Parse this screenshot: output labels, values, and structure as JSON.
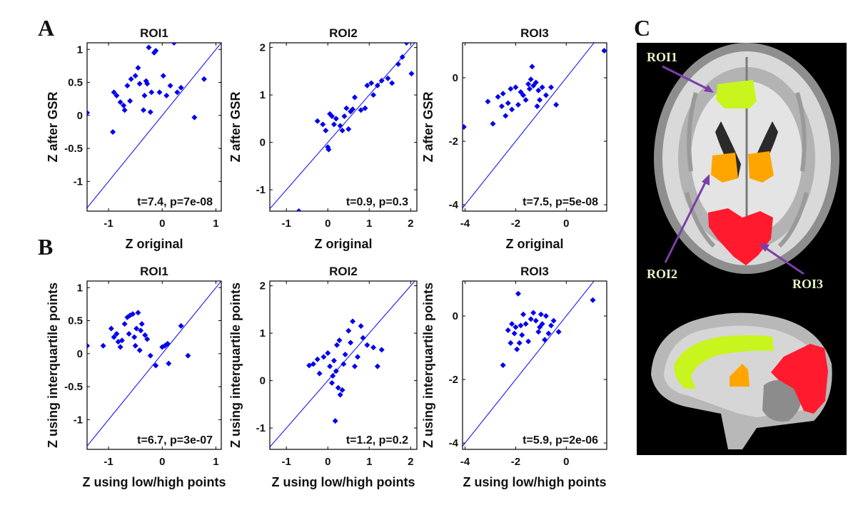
{
  "panel_letters": {
    "a": "A",
    "b": "B",
    "c": "C"
  },
  "brain": {
    "roi1_label": "ROI1",
    "roi2_label": "ROI2",
    "roi3_label": "ROI3",
    "colors": {
      "roi1": "#c8f51e",
      "roi2": "#ffa500",
      "roi3": "#ff1a2e",
      "arrow": "#7a3ea8"
    }
  },
  "chart_data": [
    {
      "id": "A1",
      "type": "scatter",
      "title": "ROI1",
      "xlabel": "Z original",
      "ylabel": "Z after GSR",
      "xlim": [
        -1.4,
        1.1
      ],
      "ylim": [
        -1.45,
        1.1
      ],
      "xticks": [
        -1,
        0,
        1
      ],
      "yticks": [
        -1,
        -0.5,
        0,
        0.5,
        1
      ],
      "annotation": "t=7.4, p=7e-08",
      "points": [
        [
          -1.4,
          0.04
        ],
        [
          -0.92,
          -0.25
        ],
        [
          -0.9,
          0.35
        ],
        [
          -0.85,
          0.3
        ],
        [
          -0.78,
          0.2
        ],
        [
          -0.72,
          0.15
        ],
        [
          -0.7,
          0.08
        ],
        [
          -0.65,
          0.45
        ],
        [
          -0.6,
          0.22
        ],
        [
          -0.58,
          0.55
        ],
        [
          -0.5,
          0.6
        ],
        [
          -0.45,
          0.72
        ],
        [
          -0.42,
          0.48
        ],
        [
          -0.35,
          0.08
        ],
        [
          -0.33,
          0.3
        ],
        [
          -0.3,
          0.52
        ],
        [
          -0.28,
          0.48
        ],
        [
          -0.25,
          1.03
        ],
        [
          -0.22,
          0.05
        ],
        [
          -0.2,
          0.35
        ],
        [
          -0.15,
          0.95
        ],
        [
          -0.12,
          0.98
        ],
        [
          -0.05,
          0.35
        ],
        [
          0.02,
          0.6
        ],
        [
          0.08,
          0.3
        ],
        [
          0.15,
          0.45
        ],
        [
          0.22,
          1.1
        ],
        [
          0.28,
          0.35
        ],
        [
          0.35,
          0.42
        ],
        [
          0.6,
          -0.03
        ],
        [
          0.78,
          0.55
        ]
      ]
    },
    {
      "id": "A2",
      "type": "scatter",
      "title": "ROI2",
      "xlabel": "Z original",
      "ylabel": "Z after GSR",
      "xlim": [
        -1.4,
        2.15
      ],
      "ylim": [
        -1.45,
        2.1
      ],
      "xticks": [
        -1,
        0,
        1,
        2
      ],
      "yticks": [
        -1,
        0,
        1,
        2
      ],
      "annotation": "t=0.9, p=0.3",
      "points": [
        [
          -0.7,
          -1.45
        ],
        [
          -0.25,
          0.45
        ],
        [
          -0.12,
          0.38
        ],
        [
          -0.05,
          0.25
        ],
        [
          0.0,
          -0.1
        ],
        [
          0.02,
          -0.15
        ],
        [
          0.05,
          0.6
        ],
        [
          0.1,
          0.55
        ],
        [
          0.15,
          0.38
        ],
        [
          0.2,
          0.5
        ],
        [
          0.3,
          0.35
        ],
        [
          0.35,
          0.25
        ],
        [
          0.4,
          0.55
        ],
        [
          0.45,
          0.72
        ],
        [
          0.5,
          0.28
        ],
        [
          0.55,
          0.65
        ],
        [
          0.6,
          0.7
        ],
        [
          0.65,
          0.95
        ],
        [
          0.8,
          0.68
        ],
        [
          0.9,
          0.72
        ],
        [
          0.95,
          1.2
        ],
        [
          1.05,
          1.25
        ],
        [
          1.1,
          1.0
        ],
        [
          1.2,
          1.2
        ],
        [
          1.3,
          1.3
        ],
        [
          1.45,
          1.35
        ],
        [
          1.55,
          1.25
        ],
        [
          1.7,
          1.65
        ],
        [
          1.8,
          1.8
        ],
        [
          1.9,
          2.1
        ],
        [
          2.02,
          1.45
        ]
      ]
    },
    {
      "id": "A3",
      "type": "scatter",
      "title": "ROI3",
      "xlabel": "Z original",
      "ylabel": "Z after GSR",
      "xlim": [
        -4.1,
        1.6
      ],
      "ylim": [
        -4.2,
        1.1
      ],
      "xticks": [
        -4,
        -2,
        0
      ],
      "yticks": [
        -4,
        -2,
        0
      ],
      "annotation": "t=7.5, p=5e-08",
      "points": [
        [
          -4.05,
          -1.55
        ],
        [
          -3.1,
          -0.75
        ],
        [
          -2.9,
          -1.45
        ],
        [
          -2.7,
          -0.6
        ],
        [
          -2.55,
          -0.9
        ],
        [
          -2.5,
          -0.5
        ],
        [
          -2.4,
          -1.2
        ],
        [
          -2.3,
          -0.8
        ],
        [
          -2.2,
          -0.35
        ],
        [
          -2.15,
          -1.0
        ],
        [
          -2.0,
          -0.3
        ],
        [
          -1.9,
          -0.85
        ],
        [
          -1.8,
          -0.45
        ],
        [
          -1.7,
          -0.55
        ],
        [
          -1.6,
          -0.7
        ],
        [
          -1.5,
          -0.2
        ],
        [
          -1.45,
          -0.35
        ],
        [
          -1.4,
          -0.05
        ],
        [
          -1.35,
          0.35
        ],
        [
          -1.3,
          -0.25
        ],
        [
          -1.2,
          -0.15
        ],
        [
          -1.15,
          -0.9
        ],
        [
          -1.1,
          -0.4
        ],
        [
          -1.05,
          -0.7
        ],
        [
          -0.95,
          -0.3
        ],
        [
          -0.8,
          -0.55
        ],
        [
          -0.6,
          -0.3
        ],
        [
          -0.4,
          -0.85
        ],
        [
          1.5,
          0.85
        ]
      ]
    },
    {
      "id": "B1",
      "type": "scatter",
      "title": "ROI1",
      "xlabel": "Z using low/high points",
      "ylabel": "Z using interquartile points",
      "xlim": [
        -1.4,
        1.1
      ],
      "ylim": [
        -1.45,
        1.1
      ],
      "xticks": [
        -1,
        0,
        1
      ],
      "yticks": [
        -1,
        -0.5,
        0,
        0.5,
        1
      ],
      "annotation": "t=6.7, p=3e-07",
      "points": [
        [
          -1.4,
          0.12
        ],
        [
          -1.1,
          0.12
        ],
        [
          -0.95,
          0.38
        ],
        [
          -0.9,
          0.25
        ],
        [
          -0.85,
          0.3
        ],
        [
          -0.82,
          0.18
        ],
        [
          -0.78,
          0.1
        ],
        [
          -0.75,
          0.2
        ],
        [
          -0.7,
          0.45
        ],
        [
          -0.65,
          0.55
        ],
        [
          -0.62,
          0.3
        ],
        [
          -0.6,
          0.58
        ],
        [
          -0.55,
          0.6
        ],
        [
          -0.52,
          0.25
        ],
        [
          -0.5,
          0.12
        ],
        [
          -0.48,
          0.38
        ],
        [
          -0.45,
          0.62
        ],
        [
          -0.42,
          0.05
        ],
        [
          -0.4,
          0.35
        ],
        [
          -0.38,
          0.45
        ],
        [
          -0.32,
          0.28
        ],
        [
          -0.28,
          0.22
        ],
        [
          -0.22,
          -0.03
        ],
        [
          -0.12,
          -0.18
        ],
        [
          0.0,
          0.1
        ],
        [
          0.05,
          0.12
        ],
        [
          0.1,
          0.15
        ],
        [
          0.12,
          -0.15
        ],
        [
          0.35,
          0.42
        ],
        [
          0.48,
          -0.03
        ]
      ]
    },
    {
      "id": "B2",
      "type": "scatter",
      "title": "ROI2",
      "xlabel": "Z using low/high points",
      "ylabel": "Z using interquartile points",
      "xlim": [
        -1.4,
        2.15
      ],
      "ylim": [
        -1.45,
        2.1
      ],
      "xticks": [
        -1,
        0,
        1,
        2
      ],
      "yticks": [
        -1,
        0,
        1,
        2
      ],
      "annotation": "t=1.2, p=0.2",
      "points": [
        [
          -0.45,
          0.32
        ],
        [
          -0.35,
          0.35
        ],
        [
          -0.25,
          0.45
        ],
        [
          -0.2,
          0.15
        ],
        [
          -0.1,
          0.5
        ],
        [
          0.0,
          0.58
        ],
        [
          0.05,
          0.3
        ],
        [
          0.1,
          -0.05
        ],
        [
          0.12,
          0.1
        ],
        [
          0.15,
          0.42
        ],
        [
          0.18,
          -0.85
        ],
        [
          0.2,
          0.2
        ],
        [
          0.22,
          0.75
        ],
        [
          0.25,
          -0.15
        ],
        [
          0.28,
          0.85
        ],
        [
          0.3,
          -0.3
        ],
        [
          0.35,
          -0.2
        ],
        [
          0.38,
          0.35
        ],
        [
          0.42,
          0.55
        ],
        [
          0.5,
          1.05
        ],
        [
          0.55,
          0.8
        ],
        [
          0.6,
          1.25
        ],
        [
          0.65,
          0.3
        ],
        [
          0.72,
          0.5
        ],
        [
          0.8,
          1.15
        ],
        [
          0.85,
          0.9
        ],
        [
          0.95,
          0.75
        ],
        [
          1.1,
          0.7
        ],
        [
          1.2,
          0.3
        ],
        [
          1.3,
          0.65
        ]
      ]
    },
    {
      "id": "B3",
      "type": "scatter",
      "title": "ROI3",
      "xlabel": "Z using low/high points",
      "ylabel": "Z using interquartile points",
      "xlim": [
        -4.1,
        1.6
      ],
      "ylim": [
        -4.2,
        1.1
      ],
      "xticks": [
        -4,
        -2,
        0
      ],
      "yticks": [
        -4,
        -2,
        0
      ],
      "annotation": "t=5.9, p=2e-06",
      "points": [
        [
          -2.5,
          -1.55
        ],
        [
          -2.3,
          -0.45
        ],
        [
          -2.2,
          -0.85
        ],
        [
          -2.15,
          -0.25
        ],
        [
          -2.05,
          -0.55
        ],
        [
          -2.0,
          -0.35
        ],
        [
          -1.95,
          -1.05
        ],
        [
          -1.9,
          0.7
        ],
        [
          -1.85,
          -0.85
        ],
        [
          -1.8,
          -0.3
        ],
        [
          -1.75,
          -0.6
        ],
        [
          -1.7,
          0.05
        ],
        [
          -1.6,
          -0.25
        ],
        [
          -1.5,
          -0.8
        ],
        [
          -1.4,
          -0.1
        ],
        [
          -1.3,
          0.1
        ],
        [
          -1.2,
          -0.15
        ],
        [
          -1.1,
          -0.5
        ],
        [
          -1.05,
          -0.35
        ],
        [
          -1.0,
          0.05
        ],
        [
          -0.95,
          -0.25
        ],
        [
          -0.85,
          -0.75
        ],
        [
          -0.8,
          0.0
        ],
        [
          -0.7,
          -0.55
        ],
        [
          -0.6,
          -0.3
        ],
        [
          -0.5,
          -0.15
        ],
        [
          -0.3,
          -0.5
        ],
        [
          1.05,
          0.5
        ]
      ]
    }
  ]
}
